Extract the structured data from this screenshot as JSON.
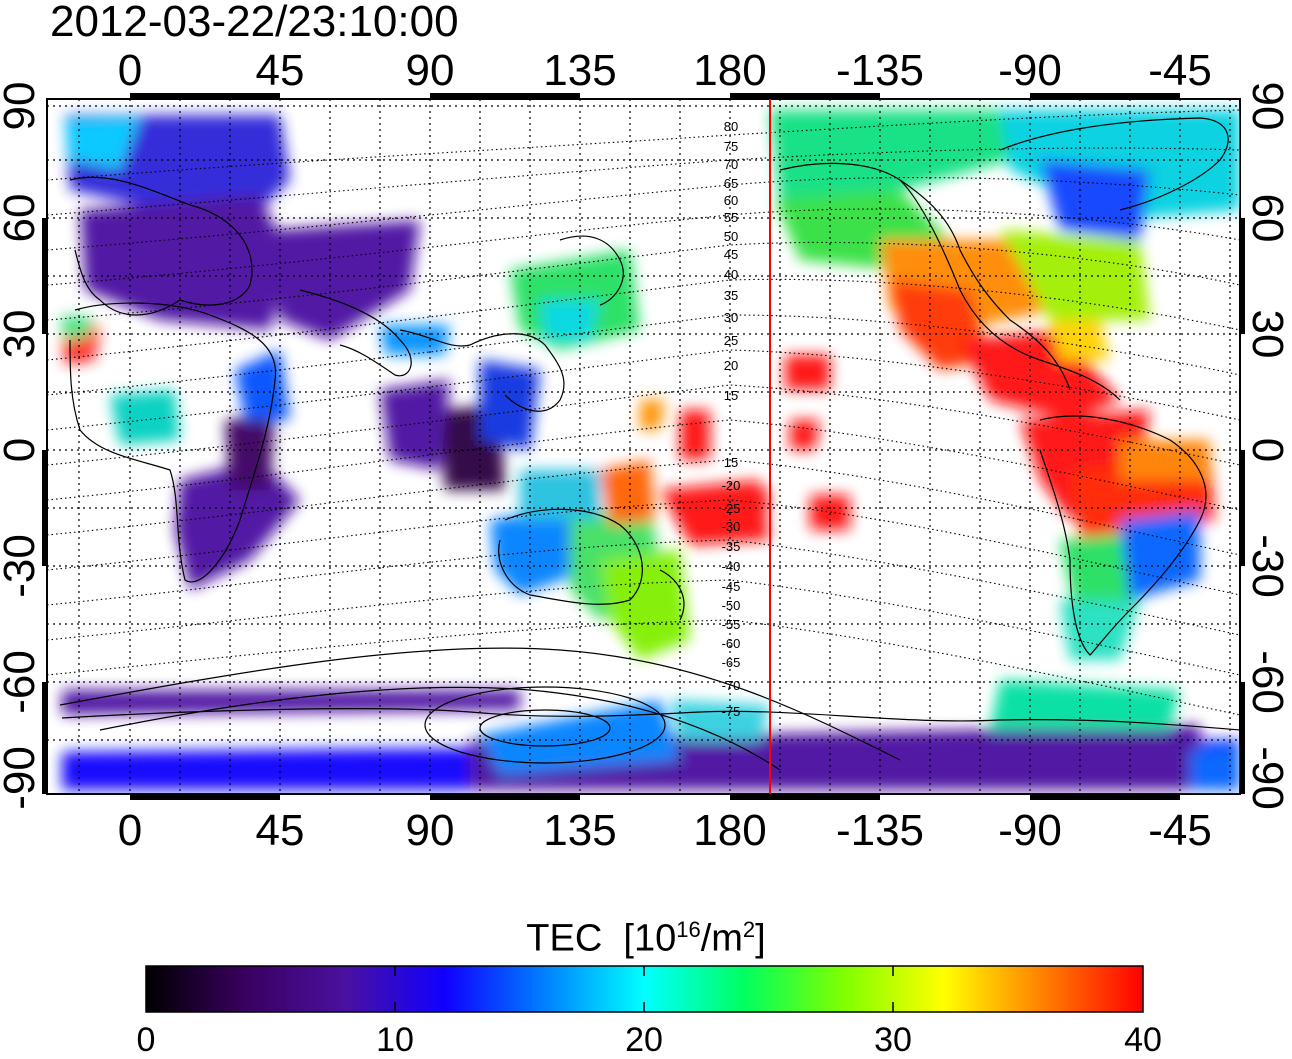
{
  "title": "2012-03-22/23:10:00",
  "top_axis_labels": [
    "0",
    "45",
    "90",
    "135",
    "180",
    "-135",
    "-90",
    "-45"
  ],
  "bottom_axis_labels": [
    "0",
    "45",
    "90",
    "135",
    "180",
    "-135",
    "-90",
    "-45"
  ],
  "left_axis_labels": [
    "90",
    "60",
    "30",
    "0",
    "-30",
    "-60",
    "-90"
  ],
  "right_axis_labels": [
    "90",
    "60",
    "30",
    "0",
    "-30",
    "-60",
    "-90"
  ],
  "contour_labels": [
    "80",
    "75",
    "70",
    "65",
    "60",
    "55",
    "50",
    "45",
    "40",
    "35",
    "30",
    "25",
    "20",
    "15",
    "15",
    "-20",
    "-25",
    "-30",
    "-35",
    "-40",
    "-45",
    "-50",
    "-55",
    "-60",
    "-65",
    "-70",
    "-75"
  ],
  "colorbar": {
    "title_main": "TEC",
    "title_unit_prefix": "[10",
    "title_unit_exp": "16",
    "title_unit_mid": "/m",
    "title_unit_exp2": "2",
    "title_unit_suffix": "]",
    "min": 0,
    "max": 40,
    "tick_labels": [
      "0",
      "10",
      "20",
      "30",
      "40"
    ],
    "colors": [
      "#000000",
      "#3a0060",
      "#4a10a0",
      "#0000ff",
      "#0080ff",
      "#00ffff",
      "#00ff80",
      "#00ff00",
      "#80ff00",
      "#ffff00",
      "#ff8000",
      "#ff0000"
    ]
  },
  "terminator_longitude": 193,
  "terminator_color": "#ff0000"
}
